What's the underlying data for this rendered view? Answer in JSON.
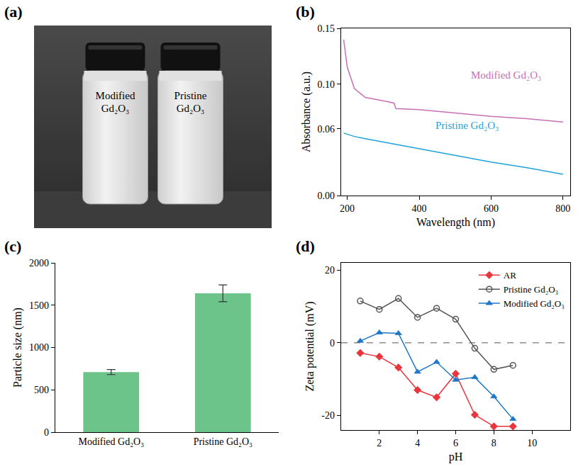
{
  "photo": {
    "label": "(a)",
    "vials": [
      "Modified Gd₂O₃",
      "Pristine Gd₂O₃"
    ]
  },
  "chart_data": [
    {
      "label": "(b)",
      "type": "line",
      "x_label": "Wavelength (nm)",
      "y_label": "Absorbance (a.u.)",
      "xlim": [
        183,
        820
      ],
      "xticks": [
        200,
        400,
        600,
        800
      ],
      "ylim": [
        0,
        0.15
      ],
      "yticks": [
        {
          "value": 0,
          "label": "0.00"
        },
        {
          "value": 0.06,
          "label": "0.06"
        },
        {
          "value": 0.1,
          "label": "0.10"
        },
        {
          "value": 0.15,
          "label": "0.15"
        }
      ],
      "grid": false,
      "x": [
        190,
        200,
        220,
        250,
        300,
        330,
        335,
        400,
        500,
        600,
        700,
        800
      ],
      "series": [
        {
          "name": "Modified Gd₂O₃",
          "color": "#c86fb5",
          "values": [
            0.14,
            0.115,
            0.096,
            0.088,
            0.085,
            0.083,
            0.078,
            0.077,
            0.074,
            0.071,
            0.069,
            0.066
          ]
        },
        {
          "name": "Pristine Gd₂O₃",
          "color": "#1fa3d9",
          "values": [
            0.056,
            0.055,
            0.053,
            0.051,
            0.048,
            0.046,
            0.046,
            0.042,
            0.036,
            0.03,
            0.025,
            0.019
          ]
        }
      ]
    },
    {
      "label": "(c)",
      "type": "bar",
      "y_label": "Particle size (nm)",
      "categories": [
        "Modified Gd₂O₃",
        "Pristine Gd₂O₃"
      ],
      "values": [
        710,
        1640
      ],
      "errors": [
        30,
        100
      ],
      "color": "#6cc48a",
      "ylim": [
        0,
        2000
      ],
      "yticks": [
        0,
        500,
        1000,
        1500,
        2000
      ],
      "grid": false
    },
    {
      "label": "(d)",
      "type": "line",
      "x_label": "pH",
      "y_label": "Zeta potential (mV)",
      "xlim": [
        0,
        12
      ],
      "xticks": [
        2,
        4,
        6,
        8,
        10
      ],
      "ylim": [
        -24,
        22
      ],
      "yticks": [
        -20,
        0,
        20
      ],
      "hline": 0,
      "legend": "upper right",
      "grid": false,
      "x": [
        1,
        2,
        3,
        4,
        5,
        6,
        7,
        8,
        9
      ],
      "series": [
        {
          "name": "AR",
          "color": "#e8363c",
          "marker": "diamond",
          "values": [
            -2.8,
            -3.8,
            -6.8,
            -13,
            -15,
            -8.5,
            -19.8,
            -23,
            -23
          ]
        },
        {
          "name": "Pristine Gd₂O₃",
          "color": "#555555",
          "marker": "circle-open",
          "values": [
            11.5,
            9.2,
            12.2,
            7,
            9.5,
            6.5,
            -1.5,
            -7.3,
            -6.2
          ]
        },
        {
          "name": "Modified Gd₂O₃",
          "color": "#1f77c8",
          "marker": "triangle-up",
          "values": [
            0.5,
            2.8,
            2.6,
            -8,
            -5.3,
            -10.2,
            -9.5,
            -14.8,
            -21
          ]
        }
      ]
    }
  ]
}
